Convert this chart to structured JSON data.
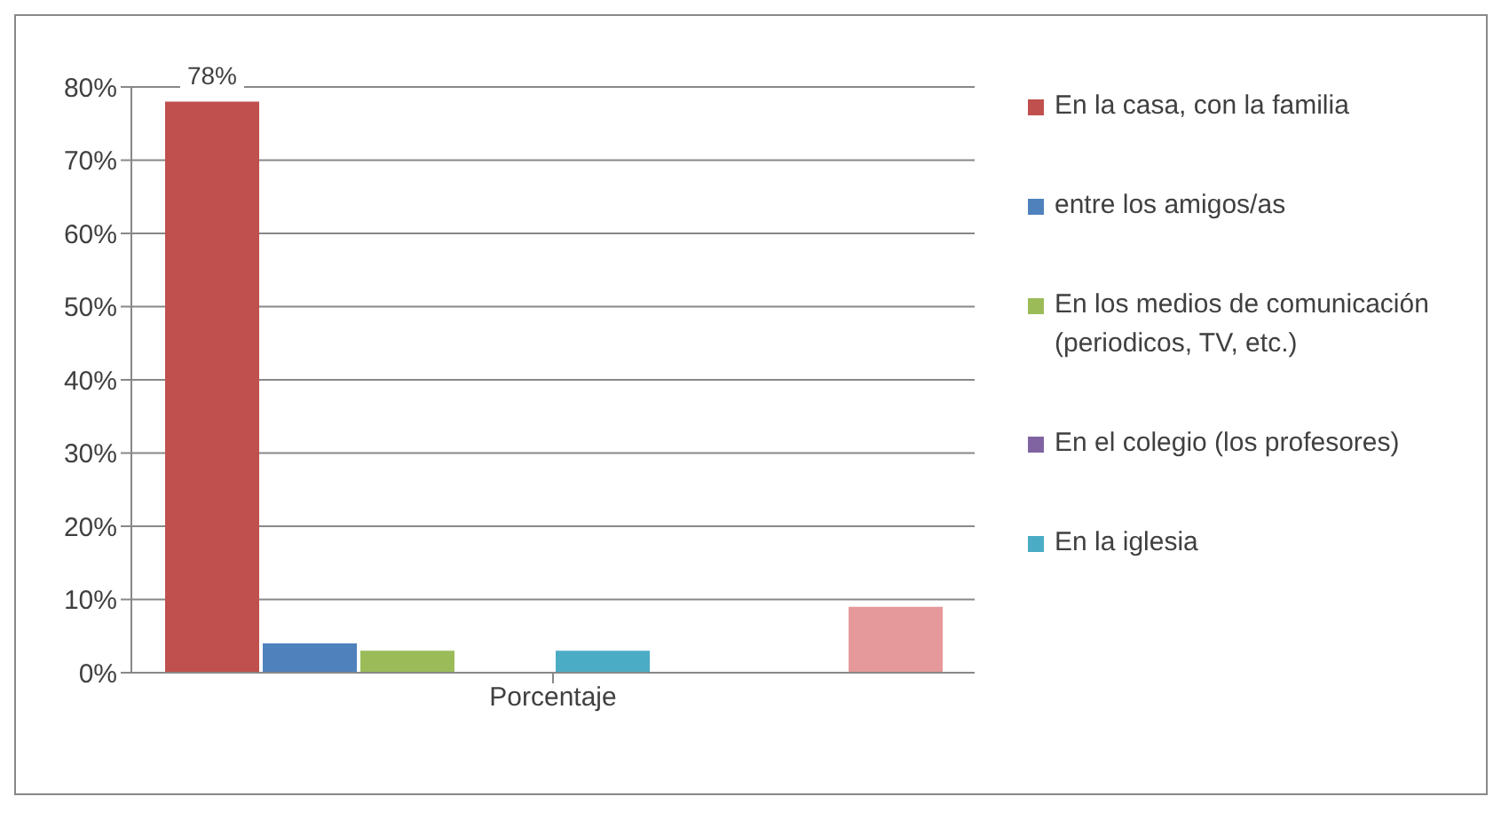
{
  "chart_data": {
    "type": "bar",
    "xlabel": null,
    "categories": [
      "Porcentaje"
    ],
    "series": [
      {
        "name": "En la casa, con la familia",
        "color": "#c0504d",
        "values": [
          78
        ],
        "value_labels": [
          "78%"
        ]
      },
      {
        "name": "entre los amigos/as",
        "color": "#4f81bd",
        "values": [
          4
        ],
        "value_labels": [
          null
        ]
      },
      {
        "name": "En los medios de comunicación (periodicos, TV, etc.)",
        "color": "#9bbb59",
        "values": [
          3
        ],
        "value_labels": [
          null
        ]
      },
      {
        "name": "En el colegio (los profesores)",
        "color": "#8064a2",
        "values": [
          0
        ],
        "value_labels": [
          null
        ]
      },
      {
        "name": "En la iglesia",
        "color": "#4bacc6",
        "values": [
          3
        ],
        "value_labels": [
          null
        ]
      },
      {
        "color": "#f79646",
        "values": [
          0
        ],
        "value_labels": [
          null
        ]
      },
      {
        "color": "#8ea2c8",
        "values": [
          0
        ],
        "value_labels": [
          null
        ]
      },
      {
        "color": "#e6999a",
        "values": [
          9
        ],
        "value_labels": [
          null
        ]
      }
    ],
    "ylim": [
      0,
      80
    ],
    "yticks": [
      {
        "value": 0,
        "label": "0%"
      },
      {
        "value": 10,
        "label": "10%"
      },
      {
        "value": 20,
        "label": "20%"
      },
      {
        "value": 30,
        "label": "30%"
      },
      {
        "value": 40,
        "label": "40%"
      },
      {
        "value": 50,
        "label": "50%"
      },
      {
        "value": 60,
        "label": "60%"
      },
      {
        "value": 70,
        "label": "70%"
      },
      {
        "value": 80,
        "label": "80%"
      }
    ],
    "grid": "y",
    "legend": "right"
  }
}
